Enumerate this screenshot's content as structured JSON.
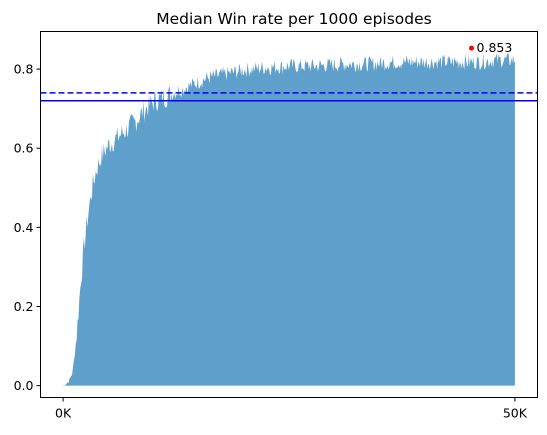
{
  "chart_data": {
    "type": "area",
    "title": "Median Win rate per 1000 episodes",
    "xlabel": "",
    "ylabel": "",
    "x_range": [
      0,
      50000
    ],
    "xlim": [
      -2500,
      52500
    ],
    "ylim": [
      -0.03,
      0.895
    ],
    "x_ticks": [
      {
        "value": 0,
        "label": "0K"
      },
      {
        "value": 50000,
        "label": "50K"
      }
    ],
    "y_ticks": [
      {
        "value": 0.0,
        "label": "0.0"
      },
      {
        "value": 0.2,
        "label": "0.2"
      },
      {
        "value": 0.4,
        "label": "0.4"
      },
      {
        "value": 0.6,
        "label": "0.6"
      },
      {
        "value": 0.8,
        "label": "0.8"
      }
    ],
    "area_color": "#5f9fcb",
    "envelope": {
      "x": [
        0,
        600,
        1000,
        1300,
        1600,
        2000,
        2400,
        2800,
        3200,
        3700,
        4200,
        5000,
        6000,
        7000,
        8000,
        9000,
        10000,
        11000,
        12000,
        13000,
        14000,
        15000,
        16000,
        17000,
        18000,
        20000,
        22000,
        25000,
        28000,
        31000,
        34000,
        37000,
        40000,
        43000,
        46000,
        48000,
        50000
      ],
      "y": [
        0.0,
        0.01,
        0.03,
        0.08,
        0.16,
        0.28,
        0.37,
        0.44,
        0.5,
        0.55,
        0.58,
        0.61,
        0.63,
        0.65,
        0.67,
        0.7,
        0.72,
        0.73,
        0.74,
        0.75,
        0.76,
        0.77,
        0.78,
        0.785,
        0.79,
        0.8,
        0.805,
        0.81,
        0.81,
        0.815,
        0.815,
        0.82,
        0.82,
        0.82,
        0.82,
        0.825,
        0.825
      ]
    },
    "reference_lines": [
      {
        "y": 0.74,
        "style": "dashed",
        "color": "#0000ff"
      },
      {
        "y": 0.72,
        "style": "solid",
        "color": "#0000ff"
      }
    ],
    "max_point": {
      "x": 45200,
      "y": 0.853,
      "label": "0.853",
      "color": "#ff0000"
    },
    "grid": false,
    "legend": "none"
  }
}
